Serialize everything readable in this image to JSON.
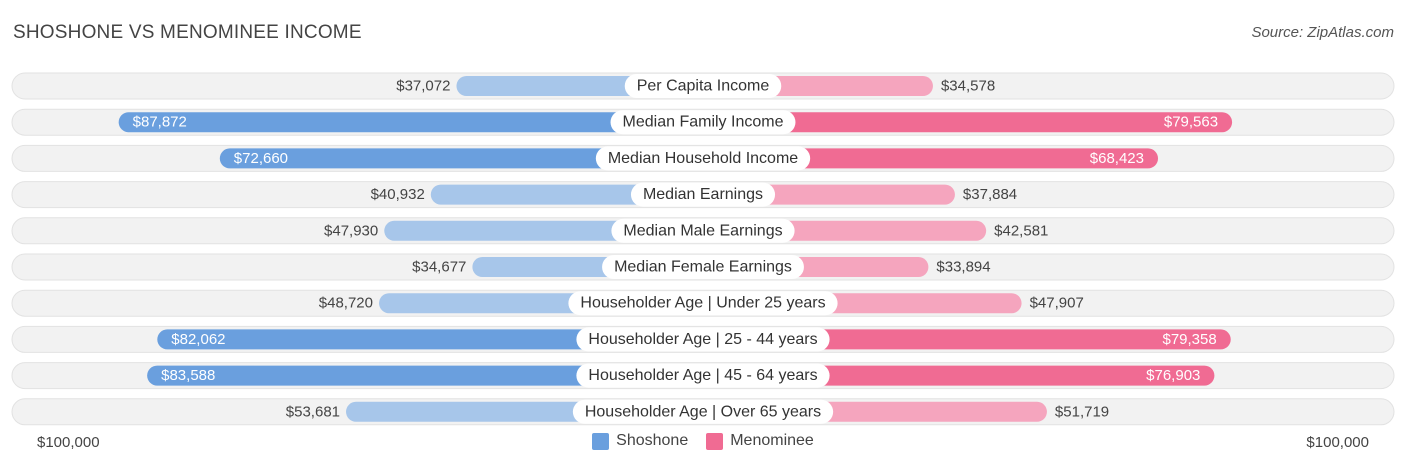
{
  "title": "SHOSHONE VS MENOMINEE INCOME",
  "source": "Source: ZipAtlas.com",
  "colors": {
    "shoshone_strong": "#6a9fde",
    "shoshone_light": "#a7c6ea",
    "menominee_strong": "#f06b93",
    "menominee_light": "#f5a5be",
    "track": "#efefef"
  },
  "chart_data": {
    "type": "bar",
    "orientation": "diverging-horizontal",
    "title": "SHOSHONE VS MENOMINEE INCOME",
    "categories": [
      "Per Capita Income",
      "Median Family Income",
      "Median Household Income",
      "Median Earnings",
      "Median Male Earnings",
      "Median Female Earnings",
      "Householder Age | Under 25 years",
      "Householder Age | 25 - 44 years",
      "Householder Age | 45 - 64 years",
      "Householder Age | Over 65 years"
    ],
    "series": [
      {
        "name": "Shoshone",
        "side": "left",
        "values": [
          37072,
          87872,
          72660,
          40932,
          47930,
          34677,
          48720,
          82062,
          83588,
          53681
        ],
        "labels": [
          "$37,072",
          "$87,872",
          "$72,660",
          "$40,932",
          "$47,930",
          "$34,677",
          "$48,720",
          "$82,062",
          "$83,588",
          "$53,681"
        ]
      },
      {
        "name": "Menominee",
        "side": "right",
        "values": [
          34578,
          79563,
          68423,
          37884,
          42581,
          33894,
          47907,
          79358,
          76903,
          51719
        ],
        "labels": [
          "$34,578",
          "$79,563",
          "$68,423",
          "$37,884",
          "$42,581",
          "$33,894",
          "$47,907",
          "$79,358",
          "$76,903",
          "$51,719"
        ]
      }
    ],
    "xlim": [
      0,
      100000
    ],
    "axis_left_label": "$100,000",
    "axis_right_label": "$100,000",
    "legend_position": "bottom-center"
  }
}
